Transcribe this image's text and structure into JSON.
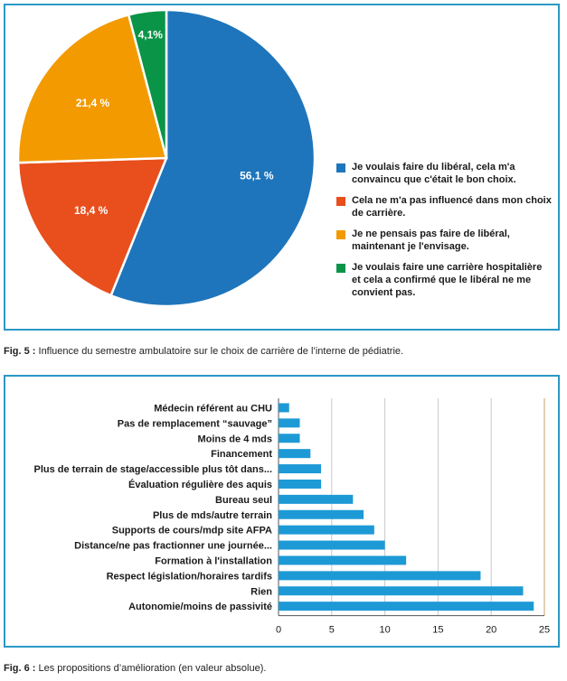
{
  "colors": {
    "blue": "#1e75bb",
    "red": "#e84f1c",
    "orange": "#f29a00",
    "green": "#0a9447",
    "bar": "#1d9ad6",
    "frame": "#2b98c6"
  },
  "chart_data": [
    {
      "type": "pie",
      "title": "",
      "slices": [
        {
          "label": "56,1 %",
          "value": 56.1,
          "legend": "Je voulais faire du libéral, cela m'a convaincu que c'était le bon choix.",
          "color": "#1e75bb"
        },
        {
          "label": "18,4 %",
          "value": 18.4,
          "legend": "Cela ne m'a pas influencé dans mon choix de carrière.",
          "color": "#e84f1c"
        },
        {
          "label": "21,4 %",
          "value": 21.4,
          "legend": "Je ne pensais pas faire de libéral, maintenant je l'envisage.",
          "color": "#f29a00"
        },
        {
          "label": "4,1%",
          "value": 4.1,
          "legend": "Je voulais faire une carrière hospitalière et cela a confirmé que le libéral ne me convient pas.",
          "color": "#0a9447"
        }
      ],
      "legend_placement": "right"
    },
    {
      "type": "bar",
      "orientation": "horizontal",
      "title": "",
      "categories": [
        "Médecin référent au CHU",
        "Pas de remplacement “sauvage”",
        "Moins de 4 mds",
        "Financement",
        "Plus de terrain de stage/accessible plus tôt dans...",
        "Évaluation régulière des aquis",
        "Bureau seul",
        "Plus de mds/autre terrain",
        "Supports de cours/mdp site AFPA",
        "Distance/ne pas fractionner une journée...",
        "Formation à l'installation",
        "Respect législation/horaires tardifs",
        "Rien",
        "Autonomie/moins de passivité"
      ],
      "values": [
        1,
        2,
        2,
        3,
        4,
        4,
        7,
        8,
        9,
        10,
        12,
        19,
        23,
        24
      ],
      "xlim": [
        0,
        25
      ],
      "xticks": [
        "0",
        "5",
        "10",
        "15",
        "20",
        "25"
      ],
      "grid": true
    }
  ],
  "captions": {
    "fig5_label": "Fig. 5 :",
    "fig5_text": " Influence du semestre ambulatoire sur le choix de carrière de l’interne de pédiatrie.",
    "fig6_label": "Fig. 6 :",
    "fig6_text": " Les propositions d’amélioration (en valeur absolue)."
  }
}
